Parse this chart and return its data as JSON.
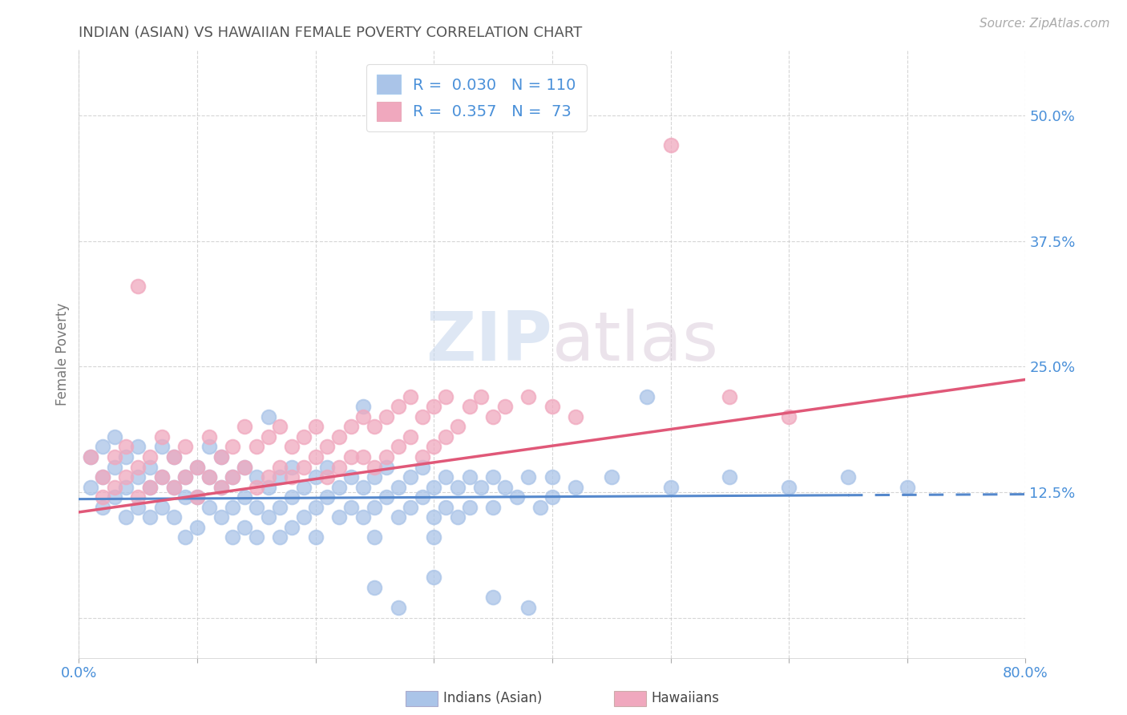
{
  "title": "INDIAN (ASIAN) VS HAWAIIAN FEMALE POVERTY CORRELATION CHART",
  "source": "Source: ZipAtlas.com",
  "ylabel": "Female Poverty",
  "xlim": [
    0.0,
    0.8
  ],
  "ylim": [
    -0.04,
    0.565
  ],
  "yticks": [
    0.0,
    0.125,
    0.25,
    0.375,
    0.5
  ],
  "ytick_labels": [
    "",
    "12.5%",
    "25.0%",
    "37.5%",
    "50.0%"
  ],
  "xticks": [
    0.0,
    0.1,
    0.2,
    0.3,
    0.4,
    0.5,
    0.6,
    0.7,
    0.8
  ],
  "xtick_labels": [
    "0.0%",
    "",
    "",
    "",
    "",
    "",
    "",
    "",
    "80.0%"
  ],
  "legend_line1": "R =  0.030   N = 110",
  "legend_line2": "R =  0.357   N =  73",
  "label1": "Indians (Asian)",
  "label2": "Hawaiians",
  "color1": "#aac4e8",
  "color2": "#f0a8be",
  "trendline1_color": "#5588cc",
  "trendline2_color": "#e05878",
  "title_color": "#555555",
  "axis_label_color": "#4a90d9",
  "tick_color": "#4a90d9",
  "watermark_zip": "ZIP",
  "watermark_atlas": "atlas",
  "background_color": "#ffffff",
  "blue_intercept": 0.118,
  "blue_slope": 0.006,
  "pink_intercept": 0.105,
  "pink_slope": 0.165,
  "blue_scatter": [
    [
      0.01,
      0.16
    ],
    [
      0.01,
      0.13
    ],
    [
      0.02,
      0.17
    ],
    [
      0.02,
      0.14
    ],
    [
      0.02,
      0.11
    ],
    [
      0.03,
      0.15
    ],
    [
      0.03,
      0.12
    ],
    [
      0.03,
      0.18
    ],
    [
      0.04,
      0.13
    ],
    [
      0.04,
      0.1
    ],
    [
      0.04,
      0.16
    ],
    [
      0.05,
      0.14
    ],
    [
      0.05,
      0.11
    ],
    [
      0.05,
      0.17
    ],
    [
      0.06,
      0.13
    ],
    [
      0.06,
      0.1
    ],
    [
      0.06,
      0.15
    ],
    [
      0.07,
      0.14
    ],
    [
      0.07,
      0.11
    ],
    [
      0.07,
      0.17
    ],
    [
      0.08,
      0.13
    ],
    [
      0.08,
      0.1
    ],
    [
      0.08,
      0.16
    ],
    [
      0.09,
      0.14
    ],
    [
      0.09,
      0.12
    ],
    [
      0.09,
      0.08
    ],
    [
      0.1,
      0.15
    ],
    [
      0.1,
      0.12
    ],
    [
      0.1,
      0.09
    ],
    [
      0.11,
      0.14
    ],
    [
      0.11,
      0.11
    ],
    [
      0.11,
      0.17
    ],
    [
      0.12,
      0.13
    ],
    [
      0.12,
      0.1
    ],
    [
      0.12,
      0.16
    ],
    [
      0.13,
      0.14
    ],
    [
      0.13,
      0.11
    ],
    [
      0.13,
      0.08
    ],
    [
      0.14,
      0.15
    ],
    [
      0.14,
      0.12
    ],
    [
      0.14,
      0.09
    ],
    [
      0.15,
      0.14
    ],
    [
      0.15,
      0.11
    ],
    [
      0.15,
      0.08
    ],
    [
      0.16,
      0.2
    ],
    [
      0.16,
      0.13
    ],
    [
      0.16,
      0.1
    ],
    [
      0.17,
      0.14
    ],
    [
      0.17,
      0.11
    ],
    [
      0.17,
      0.08
    ],
    [
      0.18,
      0.15
    ],
    [
      0.18,
      0.12
    ],
    [
      0.18,
      0.09
    ],
    [
      0.19,
      0.13
    ],
    [
      0.19,
      0.1
    ],
    [
      0.2,
      0.14
    ],
    [
      0.2,
      0.11
    ],
    [
      0.2,
      0.08
    ],
    [
      0.21,
      0.15
    ],
    [
      0.21,
      0.12
    ],
    [
      0.22,
      0.13
    ],
    [
      0.22,
      0.1
    ],
    [
      0.23,
      0.14
    ],
    [
      0.23,
      0.11
    ],
    [
      0.24,
      0.21
    ],
    [
      0.24,
      0.13
    ],
    [
      0.24,
      0.1
    ],
    [
      0.25,
      0.14
    ],
    [
      0.25,
      0.11
    ],
    [
      0.25,
      0.08
    ],
    [
      0.26,
      0.15
    ],
    [
      0.26,
      0.12
    ],
    [
      0.27,
      0.13
    ],
    [
      0.27,
      0.1
    ],
    [
      0.28,
      0.14
    ],
    [
      0.28,
      0.11
    ],
    [
      0.29,
      0.15
    ],
    [
      0.29,
      0.12
    ],
    [
      0.3,
      0.13
    ],
    [
      0.3,
      0.1
    ],
    [
      0.3,
      0.08
    ],
    [
      0.31,
      0.14
    ],
    [
      0.31,
      0.11
    ],
    [
      0.32,
      0.13
    ],
    [
      0.32,
      0.1
    ],
    [
      0.33,
      0.14
    ],
    [
      0.33,
      0.11
    ],
    [
      0.34,
      0.13
    ],
    [
      0.35,
      0.14
    ],
    [
      0.35,
      0.11
    ],
    [
      0.36,
      0.13
    ],
    [
      0.37,
      0.12
    ],
    [
      0.38,
      0.14
    ],
    [
      0.39,
      0.11
    ],
    [
      0.4,
      0.14
    ],
    [
      0.4,
      0.12
    ],
    [
      0.42,
      0.13
    ],
    [
      0.45,
      0.14
    ],
    [
      0.48,
      0.22
    ],
    [
      0.5,
      0.13
    ],
    [
      0.55,
      0.14
    ],
    [
      0.6,
      0.13
    ],
    [
      0.65,
      0.14
    ],
    [
      0.7,
      0.13
    ],
    [
      0.25,
      0.03
    ],
    [
      0.27,
      0.01
    ],
    [
      0.3,
      0.04
    ],
    [
      0.35,
      0.02
    ],
    [
      0.38,
      0.01
    ]
  ],
  "pink_scatter": [
    [
      0.01,
      0.16
    ],
    [
      0.02,
      0.14
    ],
    [
      0.02,
      0.12
    ],
    [
      0.03,
      0.16
    ],
    [
      0.03,
      0.13
    ],
    [
      0.04,
      0.17
    ],
    [
      0.04,
      0.14
    ],
    [
      0.05,
      0.15
    ],
    [
      0.05,
      0.12
    ],
    [
      0.06,
      0.16
    ],
    [
      0.06,
      0.13
    ],
    [
      0.07,
      0.18
    ],
    [
      0.07,
      0.14
    ],
    [
      0.08,
      0.16
    ],
    [
      0.08,
      0.13
    ],
    [
      0.09,
      0.17
    ],
    [
      0.09,
      0.14
    ],
    [
      0.1,
      0.15
    ],
    [
      0.1,
      0.12
    ],
    [
      0.11,
      0.18
    ],
    [
      0.11,
      0.14
    ],
    [
      0.12,
      0.16
    ],
    [
      0.12,
      0.13
    ],
    [
      0.13,
      0.17
    ],
    [
      0.13,
      0.14
    ],
    [
      0.14,
      0.19
    ],
    [
      0.14,
      0.15
    ],
    [
      0.15,
      0.17
    ],
    [
      0.15,
      0.13
    ],
    [
      0.16,
      0.18
    ],
    [
      0.16,
      0.14
    ],
    [
      0.17,
      0.19
    ],
    [
      0.17,
      0.15
    ],
    [
      0.18,
      0.17
    ],
    [
      0.18,
      0.14
    ],
    [
      0.19,
      0.18
    ],
    [
      0.19,
      0.15
    ],
    [
      0.2,
      0.19
    ],
    [
      0.2,
      0.16
    ],
    [
      0.21,
      0.17
    ],
    [
      0.21,
      0.14
    ],
    [
      0.22,
      0.18
    ],
    [
      0.22,
      0.15
    ],
    [
      0.23,
      0.19
    ],
    [
      0.23,
      0.16
    ],
    [
      0.24,
      0.2
    ],
    [
      0.24,
      0.16
    ],
    [
      0.25,
      0.19
    ],
    [
      0.25,
      0.15
    ],
    [
      0.26,
      0.2
    ],
    [
      0.26,
      0.16
    ],
    [
      0.27,
      0.21
    ],
    [
      0.27,
      0.17
    ],
    [
      0.28,
      0.22
    ],
    [
      0.28,
      0.18
    ],
    [
      0.29,
      0.2
    ],
    [
      0.29,
      0.16
    ],
    [
      0.3,
      0.21
    ],
    [
      0.3,
      0.17
    ],
    [
      0.31,
      0.22
    ],
    [
      0.31,
      0.18
    ],
    [
      0.32,
      0.19
    ],
    [
      0.33,
      0.21
    ],
    [
      0.34,
      0.22
    ],
    [
      0.35,
      0.2
    ],
    [
      0.36,
      0.21
    ],
    [
      0.38,
      0.22
    ],
    [
      0.4,
      0.21
    ],
    [
      0.42,
      0.2
    ],
    [
      0.5,
      0.47
    ],
    [
      0.05,
      0.33
    ],
    [
      0.55,
      0.22
    ],
    [
      0.6,
      0.2
    ]
  ]
}
